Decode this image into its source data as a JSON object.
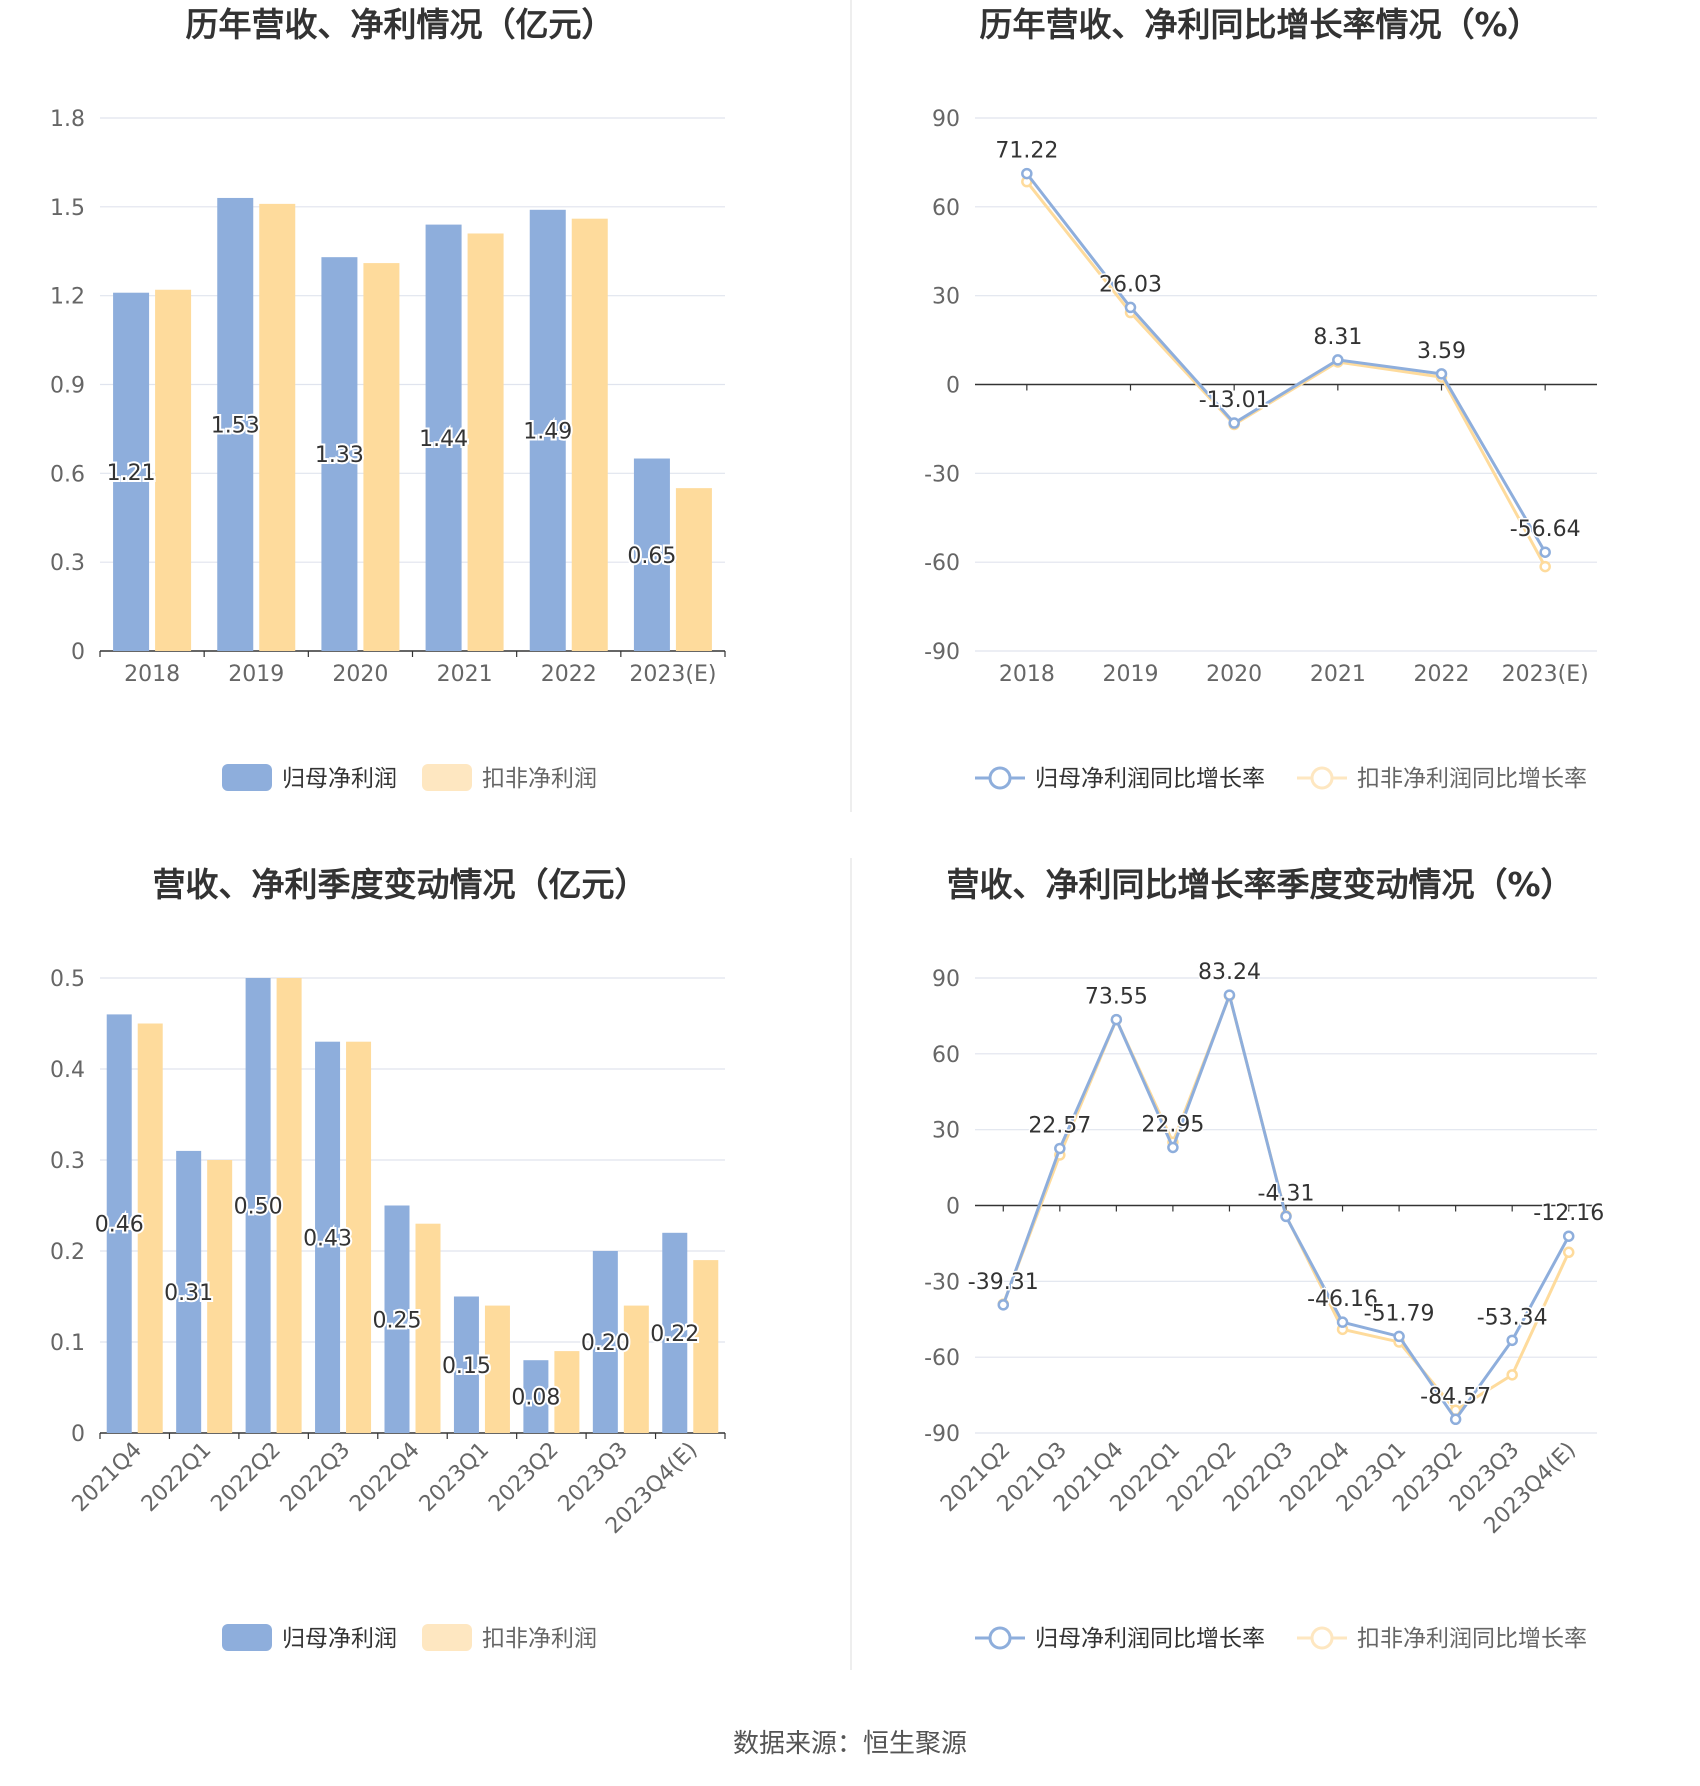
{
  "source": "数据来源：恒生聚源",
  "colors": {
    "primary": "#8eaedc",
    "secondary": "#fedb9c",
    "secondary_light": "#fee7c1",
    "grid": "#e0e4ee",
    "axis": "#333333"
  },
  "chart_data": [
    {
      "type": "bar",
      "title": "历年营收、净利情况（亿元）",
      "categories": [
        "2018",
        "2019",
        "2020",
        "2021",
        "2022",
        "2023(E)"
      ],
      "series": [
        {
          "name": "归母净利润",
          "values": [
            1.21,
            1.53,
            1.33,
            1.44,
            1.49,
            0.65
          ],
          "labels": [
            "1.21",
            "1.53",
            "1.33",
            "1.44",
            "1.49",
            "0.65"
          ]
        },
        {
          "name": "扣非净利润",
          "values": [
            1.22,
            1.51,
            1.31,
            1.41,
            1.46,
            0.55
          ]
        }
      ],
      "yticks": [
        "0",
        "0.3",
        "0.6",
        "0.9",
        "1.2",
        "1.5",
        "1.8"
      ],
      "ylim": [
        0,
        1.8
      ],
      "legend": "bottom"
    },
    {
      "type": "line",
      "title": "历年营收、净利同比增长率情况（%）",
      "categories": [
        "2018",
        "2019",
        "2020",
        "2021",
        "2022",
        "2023(E)"
      ],
      "series": [
        {
          "name": "归母净利润同比增长率",
          "values": [
            71.22,
            26.03,
            -13.01,
            8.31,
            3.59,
            -56.64
          ],
          "labels": [
            "71.22",
            "26.03",
            "-13.01",
            "8.31",
            "3.59",
            "-56.64"
          ]
        },
        {
          "name": "扣非净利润同比增长率",
          "values": [
            68.5,
            24.3,
            -13.5,
            7.6,
            2.5,
            -61.5
          ]
        }
      ],
      "yticks": [
        "-90",
        "-60",
        "-30",
        "0",
        "30",
        "60",
        "90"
      ],
      "ylim": [
        -90,
        90
      ],
      "legend": "bottom"
    },
    {
      "type": "bar",
      "title": "营收、净利季度变动情况（亿元）",
      "categories": [
        "2021Q4",
        "2022Q1",
        "2022Q2",
        "2022Q3",
        "2022Q4",
        "2023Q1",
        "2023Q2",
        "2023Q3",
        "2023Q4(E)"
      ],
      "series": [
        {
          "name": "归母净利润",
          "values": [
            0.46,
            0.31,
            0.5,
            0.43,
            0.25,
            0.15,
            0.08,
            0.2,
            0.22
          ],
          "labels": [
            "0.46",
            "0.31",
            "0.50",
            "0.43",
            "0.25",
            "0.15",
            "0.08",
            "0.20",
            "0.22"
          ]
        },
        {
          "name": "扣非净利润",
          "values": [
            0.45,
            0.3,
            0.5,
            0.43,
            0.23,
            0.14,
            0.09,
            0.14,
            0.19
          ]
        }
      ],
      "yticks": [
        "0",
        "0.1",
        "0.2",
        "0.3",
        "0.4",
        "0.5"
      ],
      "ylim": [
        0,
        0.5
      ],
      "legend": "bottom"
    },
    {
      "type": "line",
      "title": "营收、净利同比增长率季度变动情况（%）",
      "categories": [
        "2021Q2",
        "2021Q3",
        "2021Q4",
        "2022Q1",
        "2022Q2",
        "2022Q3",
        "2022Q4",
        "2023Q1",
        "2023Q2",
        "2023Q3",
        "2023Q4(E)"
      ],
      "series": [
        {
          "name": "归母净利润同比增长率",
          "values": [
            -39.31,
            22.57,
            73.55,
            22.95,
            83.24,
            -4.31,
            -46.16,
            -51.79,
            -84.57,
            -53.34,
            -12.16
          ],
          "labels": [
            "-39.31",
            "22.57",
            "73.55",
            "22.95",
            "83.24",
            "-4.31",
            "-46.16",
            "-51.79",
            "-84.57",
            "-53.34",
            "-12.16"
          ]
        },
        {
          "name": "扣非净利润同比增长率",
          "values": [
            -39.0,
            20.0,
            73.5,
            25.0,
            83.0,
            -4.0,
            -49.0,
            -54.0,
            -81.0,
            -67.0,
            -18.5
          ]
        }
      ],
      "yticks": [
        "-90",
        "-60",
        "-30",
        "0",
        "30",
        "60",
        "90"
      ],
      "ylim": [
        -90,
        90
      ],
      "legend": "bottom"
    }
  ]
}
